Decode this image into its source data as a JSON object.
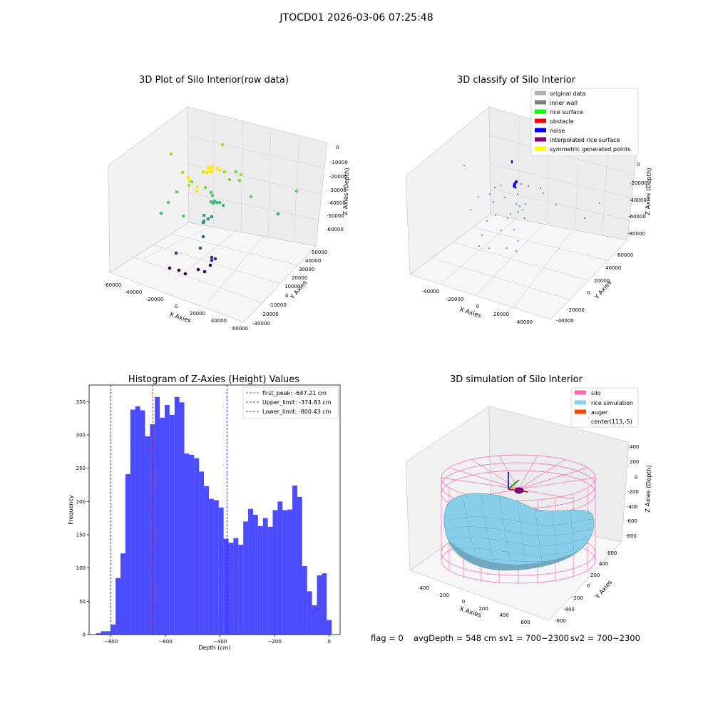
{
  "figure": {
    "suptitle": "JTOCD01 2026-03-06 07:25:48",
    "status": {
      "flag": "flag = 0",
      "avg_depth": "avgDepth = 548 cm",
      "sv1": "sv1 = 700~2300",
      "sv2": "sv2 = 700~2300"
    }
  },
  "panels": {
    "raw": {
      "title": "3D Plot of Silo Interior(row data)",
      "xlabel": "X Axies",
      "ylabel": "Y Axies",
      "zlabel": "Z Axies (Depth)",
      "xticks": [
        "-60000",
        "-40000",
        "-20000",
        "0",
        "20000",
        "40000",
        "60000"
      ],
      "yticks": [
        "-30000",
        "-20000",
        "-10000",
        "0",
        "10000",
        "20000",
        "30000",
        "40000",
        "50000"
      ],
      "zticks": [
        "0",
        "-10000",
        "-20000",
        "-30000",
        "-40000",
        "-50000",
        "-60000"
      ]
    },
    "classify": {
      "title": "3D classify of Silo Interior",
      "xlabel": "X Axies",
      "ylabel": "Y Axies",
      "zlabel": "Z Axies (Depth)",
      "xticks": [
        "-40000",
        "-20000",
        "0",
        "20000",
        "40000"
      ],
      "yticks": [
        "-40000",
        "-20000",
        "0",
        "20000",
        "40000",
        "60000"
      ],
      "zticks": [
        "0",
        "-20000",
        "-40000",
        "-60000",
        "-80000"
      ],
      "legend": [
        {
          "label": "original data",
          "color": "#b0b0b0"
        },
        {
          "label": "inner wall",
          "color": "#808080"
        },
        {
          "label": "rice surface",
          "color": "#00ff00"
        },
        {
          "label": "obstacle",
          "color": "#ff0000"
        },
        {
          "label": "noise",
          "color": "#0000ff"
        },
        {
          "label": "interpolated rice surface",
          "color": "#800080"
        },
        {
          "label": "symmetric generated points",
          "color": "#ffff00"
        }
      ]
    },
    "simulation": {
      "title": "3D simulation of Silo Interior",
      "xlabel": "X Axies",
      "ylabel": "Y Axies",
      "zlabel": "Z Axies (Depth)",
      "xticks": [
        "-400",
        "-200",
        "0",
        "200",
        "400",
        "600"
      ],
      "yticks": [
        "-600",
        "-400",
        "-200",
        "0",
        "200",
        "400",
        "600"
      ],
      "zticks": [
        "400",
        "200",
        "0",
        "-200",
        "-400",
        "-600",
        "-800"
      ],
      "legend": [
        {
          "label": "silo",
          "color": "#ff69b4"
        },
        {
          "label": "rice simulation",
          "color": "#87ceeb"
        },
        {
          "label": "auger",
          "color": "#ff4500"
        },
        {
          "label": "center(113,-5)",
          "color": "none"
        }
      ]
    }
  },
  "chart_data": {
    "type": "bar",
    "title": "Histogram of Z-Axies (Height) Values",
    "xlabel": "Depth (cm)",
    "ylabel": "Frequency",
    "xlim": [
      -880,
      40
    ],
    "ylim": [
      0,
      375
    ],
    "bar_color": "#0000ff",
    "bin_start": -855,
    "bin_width": 18,
    "values": [
      2,
      5,
      5,
      15,
      85,
      122,
      241,
      338,
      343,
      337,
      298,
      316,
      357,
      326,
      345,
      330,
      357,
      349,
      272,
      270,
      265,
      245,
      223,
      204,
      202,
      191,
      144,
      138,
      145,
      135,
      170,
      189,
      180,
      163,
      175,
      162,
      187,
      200,
      187,
      188,
      224,
      207,
      103,
      65,
      44,
      89,
      92,
      22
    ],
    "xticks": [
      -800,
      -600,
      -400,
      -200,
      0
    ],
    "yticks": [
      0,
      50,
      100,
      150,
      200,
      250,
      300,
      350
    ],
    "vlines": [
      {
        "label": "first_peak: -647.21 cm",
        "x": -647.21,
        "color": "#ff0000"
      },
      {
        "label": "Upper_limit: -374.83 cm",
        "x": -374.83,
        "color": "#0000ff"
      },
      {
        "label": "Lower_limit: -800.43 cm",
        "x": -800.43,
        "color": "#0000ff"
      }
    ]
  }
}
